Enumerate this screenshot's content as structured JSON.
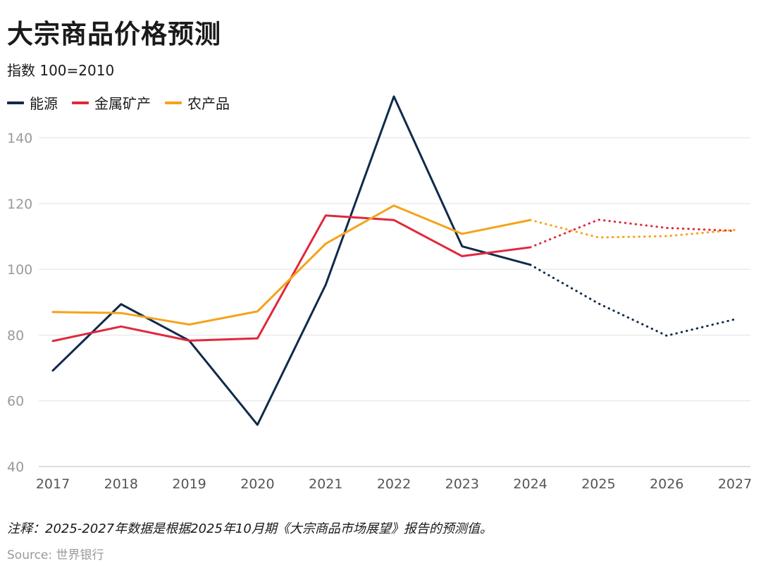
{
  "title": "大宗商品价格预测",
  "subtitle": "指数 100=2010",
  "note": "注释：2025-2027年数据是根据2025年10月期《大宗商品市场展望》报告的预测值。",
  "source": "Source: 世界银行",
  "chart_data": {
    "type": "line",
    "x": [
      "2017",
      "2018",
      "2019",
      "2020",
      "2021",
      "2022",
      "2023",
      "2024",
      "2025",
      "2026",
      "2027"
    ],
    "ylim": [
      40,
      150
    ],
    "yticks": [
      40,
      60,
      80,
      100,
      120,
      140
    ],
    "grid": true,
    "legend_position": "top-left",
    "forecast_from": "2024",
    "series": [
      {
        "name": "能源",
        "color": "#0f2a4a",
        "values": [
          69.2,
          89.4,
          78.3,
          52.7,
          95.3,
          152.6,
          107.0,
          101.4,
          89.6,
          79.8,
          84.8
        ]
      },
      {
        "name": "金属矿产",
        "color": "#e0283c",
        "values": [
          78.2,
          82.6,
          78.3,
          79.0,
          116.4,
          115.0,
          104.0,
          106.7,
          115.1,
          112.6,
          111.7
        ]
      },
      {
        "name": "农产品",
        "color": "#f4a31a",
        "values": [
          87.0,
          86.7,
          83.2,
          87.2,
          107.8,
          119.4,
          110.8,
          115.0,
          109.7,
          110.1,
          112.0
        ]
      }
    ]
  }
}
